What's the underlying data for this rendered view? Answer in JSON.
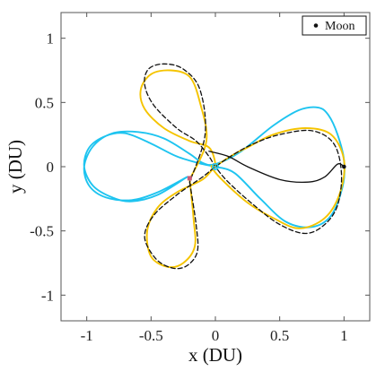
{
  "chart_data": {
    "type": "line",
    "xlabel": "x (DU)",
    "ylabel": "y (DU)",
    "xlim": [
      -1.2,
      1.2
    ],
    "ylim": [
      -1.2,
      1.2
    ],
    "xticks": [
      -1,
      -0.5,
      0,
      0.5,
      1
    ],
    "xtick_labels": [
      "-1",
      "-0.5",
      "0",
      "0.5",
      "1"
    ],
    "yticks": [
      -1,
      -0.5,
      0,
      0.5,
      1
    ],
    "ytick_labels": [
      "-1",
      "-0.5",
      "0",
      "0.5",
      "1"
    ],
    "grid": false,
    "legend": {
      "position": "top-right",
      "entries": [
        "Moon"
      ]
    },
    "colors": {
      "blue": "#1ec4f0",
      "yellow": "#f5c400",
      "black": "#111111",
      "marker": "#c85a78"
    },
    "series": [
      {
        "name": "",
        "color": "#1ec4f0",
        "style": "solid",
        "x": [
          -0.22,
          -0.45,
          -0.65,
          -0.8,
          -0.95,
          -1.02,
          -0.98,
          -0.85,
          -0.7,
          -0.5,
          -0.3,
          -0.1,
          0,
          0.15,
          0.35,
          0.55,
          0.75,
          0.9,
          0.99,
          1.0,
          0.95,
          0.88,
          0.8,
          0.65,
          0.45,
          0.2,
          0,
          -0.1,
          -0.2,
          -0.4,
          -0.6,
          -0.8,
          -0.95,
          -1.02,
          -0.98,
          -0.85,
          -0.65,
          -0.45,
          -0.22
        ],
        "y": [
          -0.08,
          -0.22,
          -0.27,
          -0.24,
          -0.15,
          0,
          0.15,
          0.24,
          0.26,
          0.18,
          0.08,
          0.02,
          0,
          -0.05,
          -0.25,
          -0.43,
          -0.47,
          -0.38,
          -0.15,
          0.05,
          0.25,
          0.4,
          0.46,
          0.44,
          0.32,
          0.12,
          0.02,
          0.03,
          0.1,
          0.22,
          0.27,
          0.26,
          0.16,
          0,
          -0.15,
          -0.24,
          -0.26,
          -0.2,
          -0.08
        ]
      },
      {
        "name": "",
        "color": "#f5c400",
        "style": "solid",
        "x": [
          -0.2,
          -0.17,
          -0.16,
          -0.25,
          -0.37,
          -0.5,
          -0.53,
          -0.45,
          -0.3,
          -0.1,
          0,
          0.15,
          0.25,
          0.45,
          0.7,
          0.9,
          1.0,
          0.97,
          0.85,
          0.65,
          0.45,
          0.25,
          0.05,
          -0.03,
          0.0,
          -0.05,
          -0.2,
          -0.4,
          -0.55,
          -0.58,
          -0.5,
          -0.35,
          -0.2,
          -0.12,
          -0.07,
          -0.2
        ],
        "y": [
          -0.1,
          -0.4,
          -0.62,
          -0.75,
          -0.78,
          -0.7,
          -0.5,
          -0.32,
          -0.2,
          -0.1,
          0,
          0.1,
          0.15,
          0.25,
          0.3,
          0.25,
          0.05,
          -0.2,
          -0.4,
          -0.48,
          -0.4,
          -0.28,
          -0.1,
          0,
          0.02,
          0.15,
          0.2,
          0.3,
          0.45,
          0.6,
          0.72,
          0.75,
          0.7,
          0.5,
          0.2,
          -0.1
        ]
      },
      {
        "name": "",
        "color": "#111111",
        "style": "dashed",
        "x": [
          -0.2,
          -0.15,
          -0.14,
          -0.22,
          -0.33,
          -0.46,
          -0.55,
          -0.48,
          -0.3,
          -0.1,
          0.0,
          0.15,
          0.3,
          0.5,
          0.75,
          0.92,
          0.98,
          0.95,
          0.85,
          0.7,
          0.5,
          0.3,
          0.1,
          0.0,
          -0.05,
          -0.15,
          -0.3,
          -0.48,
          -0.55,
          -0.52,
          -0.4,
          -0.25,
          -0.12,
          -0.08,
          -0.2
        ],
        "y": [
          -0.12,
          -0.45,
          -0.66,
          -0.77,
          -0.79,
          -0.72,
          -0.55,
          -0.38,
          -0.22,
          -0.08,
          0,
          0.1,
          0.18,
          0.25,
          0.28,
          0.18,
          -0.05,
          -0.3,
          -0.45,
          -0.52,
          -0.45,
          -0.3,
          -0.12,
          0,
          0.08,
          0.2,
          0.3,
          0.48,
          0.64,
          0.76,
          0.8,
          0.76,
          0.6,
          0.25,
          -0.12
        ]
      },
      {
        "name": "",
        "color": "#111111",
        "style": "solid",
        "x": [
          -0.05,
          0.1,
          0.25,
          0.5,
          0.72,
          0.85,
          0.95,
          1.0
        ],
        "y": [
          0.12,
          0.08,
          0.0,
          -0.1,
          -0.12,
          -0.08,
          0.02,
          0.0
        ]
      }
    ],
    "points": [
      {
        "label": "Moon",
        "x": 1.0,
        "y": 0.0,
        "color": "#111111"
      },
      {
        "label": "",
        "x": 0.0,
        "y": 0.0,
        "color": "#1ec4f0"
      },
      {
        "label": "",
        "x": -0.2,
        "y": -0.09,
        "color": "#c85a78"
      }
    ]
  }
}
